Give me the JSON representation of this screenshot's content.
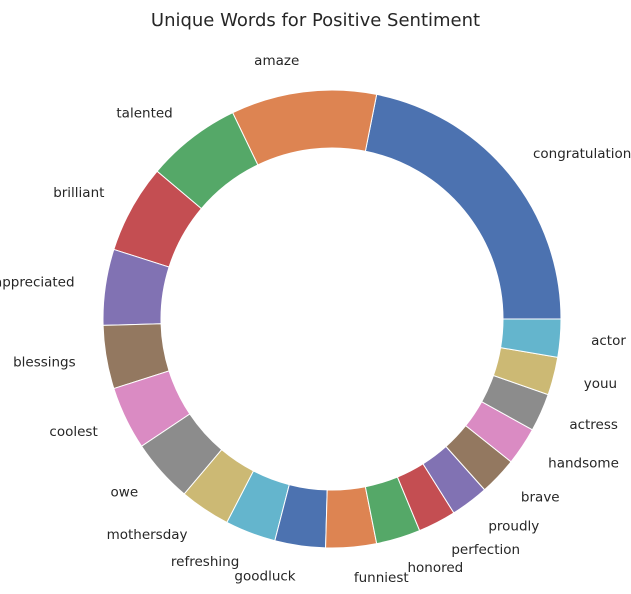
{
  "chart_data": {
    "type": "pie",
    "style": "donut",
    "title": "Unique Words for Positive Sentiment",
    "start_angle_deg": 0,
    "direction": "counterclockwise",
    "categories": [
      "congratulations",
      "amaze",
      "talented",
      "brilliant",
      "appreciated",
      "blessings",
      "coolest",
      "owe",
      "mothersday",
      "refreshing",
      "goodluck",
      "funniest",
      "honored",
      "perfection",
      "proudly",
      "brave",
      "handsome",
      "actress",
      "youu",
      "actor"
    ],
    "values": [
      24.5,
      11.5,
      7.5,
      7.0,
      6.0,
      5.0,
      5.0,
      5.0,
      4.0,
      4.0,
      4.0,
      4.0,
      3.5,
      3.0,
      3.0,
      3.0,
      3.0,
      3.0,
      3.0,
      3.0
    ],
    "colors": [
      "#4c72b0",
      "#dd8452",
      "#55a868",
      "#c44e52",
      "#8172b3",
      "#937860",
      "#da8bc3",
      "#8c8c8c",
      "#ccb974",
      "#64b5cd",
      "#4c72b0",
      "#dd8452",
      "#55a868",
      "#c44e52",
      "#8172b3",
      "#937860",
      "#da8bc3",
      "#8c8c8c",
      "#ccb974",
      "#64b5cd"
    ]
  }
}
